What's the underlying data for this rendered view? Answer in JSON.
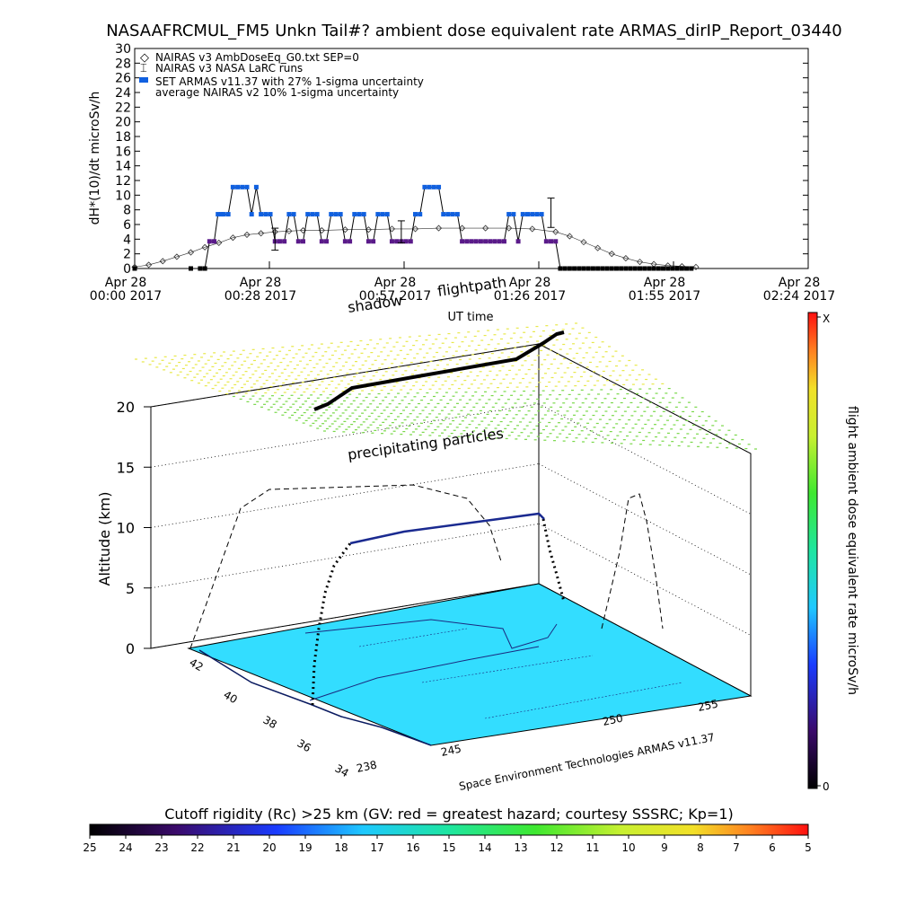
{
  "title": "NASAAFRCMUL_FM5 Unkn Tail#? ambient dose equivalent rate ARMAS_dirIP_Report_03440",
  "colors": {
    "nairas_v3": "#333333",
    "armas": "#1060e0",
    "armas_low": "#5a1a8a",
    "terrain": "#33ddff",
    "precip_high": "#e8e84a",
    "precip_low": "#7ad84a",
    "background": "#ffffff"
  },
  "chart_data": [
    {
      "type": "line",
      "ylabel": "dH*(10)/dt microSv/h",
      "xlabel": "UT time",
      "ylim": [
        0,
        30
      ],
      "yticks": [
        "0",
        "2",
        "4",
        "6",
        "8",
        "10",
        "12",
        "14",
        "16",
        "18",
        "20",
        "22",
        "24",
        "26",
        "28",
        "30"
      ],
      "xticks": [
        {
          "line1": "Apr 28",
          "line2": "00:00 2017"
        },
        {
          "line1": "Apr 28",
          "line2": "00:28 2017"
        },
        {
          "line1": "Apr 28",
          "line2": "00:57 2017"
        },
        {
          "line1": "Apr 28",
          "line2": "01:26 2017"
        },
        {
          "line1": "Apr 28",
          "line2": "01:55 2017"
        },
        {
          "line1": "Apr 28",
          "line2": "02:24 2017"
        }
      ],
      "xlim_minutes": [
        0,
        144
      ],
      "legend": [
        "NAIRAS v3 AmbDoseEq_G0.txt SEP=0",
        "NAIRAS v3 NASA LaRC runs",
        "SET ARMAS v11.37 with 27% 1-sigma uncertainty",
        "average NAIRAS v2 10% 1-sigma uncertainty"
      ],
      "legend_position": "top-left",
      "series": [
        {
          "name": "NAIRAS v3 AmbDoseEq_G0.txt SEP=0",
          "x": [
            0,
            3,
            6,
            9,
            12,
            15,
            18,
            21,
            24,
            27,
            30,
            33,
            36,
            40,
            45,
            50,
            55,
            60,
            65,
            70,
            75,
            80,
            85,
            90,
            93,
            96,
            99,
            102,
            105,
            108,
            111,
            114,
            117,
            120
          ],
          "y": [
            0.2,
            0.5,
            1.0,
            1.6,
            2.2,
            2.9,
            3.5,
            4.2,
            4.6,
            4.8,
            5.0,
            5.1,
            5.2,
            5.2,
            5.3,
            5.3,
            5.4,
            5.4,
            5.5,
            5.5,
            5.5,
            5.5,
            5.4,
            5.0,
            4.4,
            3.6,
            2.8,
            2.0,
            1.4,
            0.9,
            0.6,
            0.4,
            0.3,
            0.2
          ]
        },
        {
          "name": "SET ARMAS v11.37 with 27% 1-sigma uncertainty",
          "x": [
            0,
            12,
            14,
            15,
            16,
            17,
            17.8,
            18.5,
            19,
            20,
            21,
            22,
            23,
            24,
            25,
            26,
            27,
            28,
            29,
            30,
            31,
            32,
            33,
            34,
            35,
            36,
            37,
            38,
            39,
            40,
            41,
            42,
            43,
            44,
            45,
            46,
            47,
            48,
            49,
            50,
            51,
            52,
            53,
            54,
            55,
            56,
            57,
            58,
            59,
            60,
            61,
            62,
            63,
            64,
            65,
            66,
            67,
            68,
            69,
            70,
            71,
            72,
            73,
            74,
            75,
            76,
            77,
            78,
            79,
            80,
            81,
            82,
            83,
            84,
            85,
            86,
            87,
            88,
            89,
            90,
            91,
            92,
            93,
            94,
            95,
            96,
            97,
            98,
            99,
            100,
            101,
            102,
            103,
            104,
            105,
            106,
            107,
            108,
            109,
            110,
            111,
            112,
            113,
            114,
            115,
            116,
            117,
            118,
            119
          ],
          "y": [
            0,
            0,
            0,
            0,
            3.7,
            3.7,
            7.4,
            7.4,
            7.4,
            7.4,
            11.1,
            11.1,
            11.1,
            11.1,
            7.4,
            11.1,
            7.4,
            7.4,
            7.4,
            3.7,
            3.7,
            3.7,
            7.4,
            7.4,
            3.7,
            3.7,
            7.4,
            7.4,
            7.4,
            3.7,
            3.7,
            7.4,
            7.4,
            7.4,
            3.7,
            3.7,
            7.4,
            7.4,
            7.4,
            3.7,
            3.7,
            7.4,
            7.4,
            7.4,
            3.7,
            3.7,
            3.7,
            3.7,
            3.7,
            7.4,
            7.4,
            11.1,
            11.1,
            11.1,
            11.1,
            7.4,
            7.4,
            7.4,
            7.4,
            3.7,
            3.7,
            3.7,
            3.7,
            3.7,
            3.7,
            3.7,
            3.7,
            3.7,
            3.7,
            7.4,
            7.4,
            3.7,
            7.4,
            7.4,
            7.4,
            7.4,
            7.4,
            3.7,
            3.7,
            3.7,
            0,
            0,
            0,
            0,
            0,
            0,
            0,
            0,
            0,
            0,
            0,
            0,
            0,
            0,
            0,
            0,
            0,
            0,
            0,
            0,
            0,
            0,
            0,
            0,
            0,
            0,
            0,
            0,
            0
          ]
        },
        {
          "name": "NAIRAS v3 NASA LaRC runs",
          "x": [
            30,
            57,
            89
          ],
          "y": [
            4.0,
            5.0,
            7.6
          ],
          "err": [
            1.5,
            1.5,
            2.0
          ]
        }
      ]
    },
    {
      "type": "scatter",
      "ylabel": "Altitude (km)",
      "zticks": [
        "0",
        "5",
        "10",
        "15",
        "20"
      ],
      "lat_ticks": [
        "34",
        "36",
        "38",
        "40",
        "42"
      ],
      "lon_ticks": [
        "238",
        "245",
        "250",
        "255"
      ],
      "credit": "Space Environment Technologies ARMAS v11.37",
      "annotations": [
        "shadow",
        "flightpath",
        "precipitating particles"
      ],
      "colorbar_label": "flight ambient dose equivalent rate microSv/h",
      "colorbar_ticks": [
        "X",
        "0"
      ]
    },
    {
      "type": "heatmap",
      "label": "Cutoff rigidity (Rc) >25 km (GV: red = greatest hazard; courtesy SSSRC; Kp=1)",
      "ticks": [
        "25",
        "24",
        "23",
        "22",
        "21",
        "20",
        "19",
        "18",
        "17",
        "16",
        "15",
        "14",
        "13",
        "12",
        "11",
        "10",
        "9",
        "8",
        "7",
        "6",
        "5"
      ]
    }
  ]
}
